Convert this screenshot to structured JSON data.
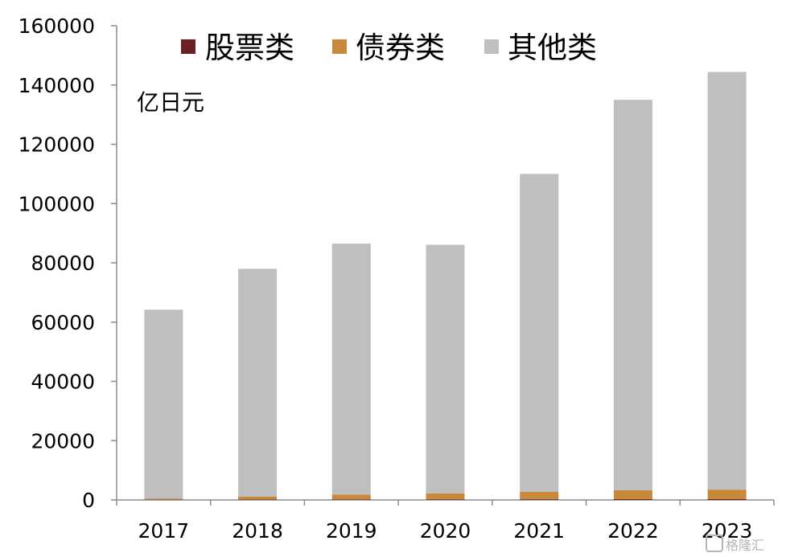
{
  "chart_data": {
    "type": "bar",
    "stacked": true,
    "categories": [
      "2017",
      "2018",
      "2019",
      "2020",
      "2021",
      "2022",
      "2023"
    ],
    "series": [
      {
        "name": "股票类",
        "color": "#6b1f1f",
        "values": [
          100,
          150,
          180,
          200,
          230,
          260,
          280
        ]
      },
      {
        "name": "债券类",
        "color": "#c8893a",
        "values": [
          300,
          950,
          1600,
          2000,
          2500,
          3000,
          3200
        ]
      },
      {
        "name": "其他类",
        "color": "#bfbfbf",
        "values": [
          63800,
          76900,
          84700,
          83900,
          107270,
          131740,
          140920
        ]
      }
    ],
    "ylim": [
      0,
      160000
    ],
    "yticks": [
      "0",
      "20000",
      "40000",
      "60000",
      "80000",
      "100000",
      "120000",
      "140000",
      "160000"
    ],
    "unit": "亿日元",
    "legend_position": "top",
    "grid": false
  },
  "watermark": "格隆汇"
}
